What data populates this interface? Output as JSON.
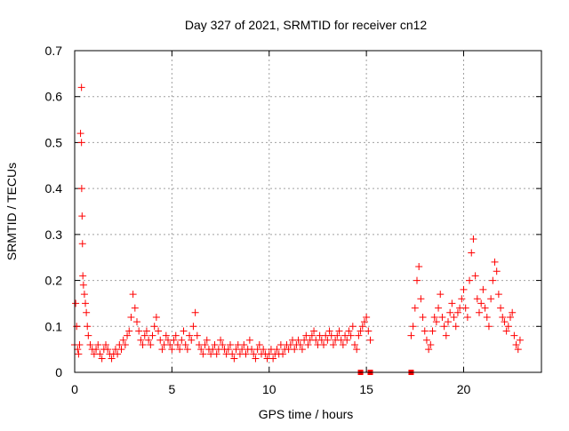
{
  "chart_data": {
    "type": "scatter",
    "title": "Day 327 of 2021, SRMTID for receiver cn12",
    "xlabel": "GPS time / hours",
    "ylabel": "SRMTID / TECUs",
    "xlim": [
      0,
      24
    ],
    "ylim": [
      0,
      0.7
    ],
    "xticks": [
      0,
      5,
      10,
      15,
      20
    ],
    "yticks": [
      0,
      0.1,
      0.2,
      0.3,
      0.4,
      0.5,
      0.6,
      0.7
    ],
    "grid": true,
    "marker": "+",
    "color": "#ff0000",
    "series": [
      {
        "name": "SRMTID",
        "x": [
          0.0,
          0.05,
          0.1,
          0.15,
          0.2,
          0.25,
          0.3,
          0.35,
          0.35,
          0.36,
          0.38,
          0.4,
          0.42,
          0.45,
          0.5,
          0.55,
          0.6,
          0.65,
          0.7,
          0.8,
          0.9,
          1.0,
          1.1,
          1.2,
          1.3,
          1.4,
          1.5,
          1.6,
          1.7,
          1.8,
          1.9,
          2.0,
          2.1,
          2.2,
          2.3,
          2.4,
          2.5,
          2.6,
          2.7,
          2.8,
          2.9,
          3.0,
          3.1,
          3.2,
          3.3,
          3.4,
          3.5,
          3.6,
          3.7,
          3.8,
          3.9,
          4.0,
          4.1,
          4.2,
          4.3,
          4.4,
          4.5,
          4.6,
          4.7,
          4.8,
          4.9,
          5.0,
          5.1,
          5.2,
          5.3,
          5.4,
          5.5,
          5.6,
          5.7,
          5.8,
          5.9,
          6.0,
          6.1,
          6.2,
          6.3,
          6.4,
          6.5,
          6.6,
          6.7,
          6.8,
          6.9,
          7.0,
          7.1,
          7.2,
          7.3,
          7.4,
          7.5,
          7.6,
          7.7,
          7.8,
          7.9,
          8.0,
          8.1,
          8.2,
          8.3,
          8.4,
          8.5,
          8.6,
          8.7,
          8.8,
          8.9,
          9.0,
          9.1,
          9.2,
          9.3,
          9.4,
          9.5,
          9.6,
          9.7,
          9.8,
          9.9,
          10.0,
          10.1,
          10.2,
          10.3,
          10.4,
          10.5,
          10.6,
          10.7,
          10.8,
          10.9,
          11.0,
          11.1,
          11.2,
          11.3,
          11.4,
          11.5,
          11.6,
          11.7,
          11.8,
          11.9,
          12.0,
          12.1,
          12.2,
          12.3,
          12.4,
          12.5,
          12.6,
          12.7,
          12.8,
          12.9,
          13.0,
          13.1,
          13.2,
          13.3,
          13.4,
          13.5,
          13.6,
          13.7,
          13.8,
          13.9,
          14.0,
          14.1,
          14.2,
          14.3,
          14.4,
          14.5,
          14.6,
          14.7,
          14.8,
          14.9,
          15.0,
          15.1,
          15.2,
          17.3,
          17.4,
          17.5,
          17.6,
          17.7,
          17.8,
          17.9,
          18.0,
          18.1,
          18.2,
          18.3,
          18.4,
          18.5,
          18.6,
          18.7,
          18.8,
          18.9,
          19.0,
          19.1,
          19.2,
          19.3,
          19.4,
          19.5,
          19.6,
          19.7,
          19.8,
          19.9,
          20.0,
          20.1,
          20.2,
          20.3,
          20.4,
          20.5,
          20.6,
          20.7,
          20.8,
          20.9,
          21.0,
          21.1,
          21.2,
          21.3,
          21.4,
          21.5,
          21.6,
          21.7,
          21.8,
          21.9,
          22.0,
          22.1,
          22.2,
          22.3,
          22.4,
          22.5,
          22.6,
          22.7,
          22.8,
          22.9
        ],
        "y": [
          0.06,
          0.15,
          0.1,
          0.05,
          0.04,
          0.06,
          0.52,
          0.62,
          0.5,
          0.4,
          0.34,
          0.28,
          0.21,
          0.19,
          0.17,
          0.15,
          0.13,
          0.1,
          0.08,
          0.06,
          0.05,
          0.04,
          0.05,
          0.06,
          0.04,
          0.03,
          0.05,
          0.06,
          0.05,
          0.04,
          0.03,
          0.04,
          0.05,
          0.04,
          0.06,
          0.05,
          0.07,
          0.06,
          0.08,
          0.09,
          0.12,
          0.17,
          0.14,
          0.11,
          0.09,
          0.07,
          0.06,
          0.08,
          0.09,
          0.07,
          0.06,
          0.08,
          0.1,
          0.12,
          0.09,
          0.07,
          0.05,
          0.06,
          0.08,
          0.07,
          0.06,
          0.05,
          0.07,
          0.08,
          0.06,
          0.05,
          0.07,
          0.09,
          0.06,
          0.05,
          0.08,
          0.07,
          0.1,
          0.13,
          0.08,
          0.06,
          0.05,
          0.04,
          0.06,
          0.07,
          0.05,
          0.04,
          0.05,
          0.06,
          0.04,
          0.05,
          0.07,
          0.06,
          0.05,
          0.04,
          0.05,
          0.06,
          0.04,
          0.03,
          0.05,
          0.06,
          0.04,
          0.05,
          0.06,
          0.04,
          0.05,
          0.07,
          0.05,
          0.04,
          0.03,
          0.05,
          0.06,
          0.04,
          0.05,
          0.04,
          0.03,
          0.04,
          0.05,
          0.03,
          0.04,
          0.05,
          0.04,
          0.06,
          0.04,
          0.05,
          0.06,
          0.05,
          0.06,
          0.07,
          0.05,
          0.06,
          0.07,
          0.06,
          0.05,
          0.07,
          0.08,
          0.06,
          0.07,
          0.08,
          0.09,
          0.07,
          0.06,
          0.08,
          0.07,
          0.06,
          0.08,
          0.07,
          0.09,
          0.08,
          0.06,
          0.07,
          0.08,
          0.09,
          0.07,
          0.06,
          0.08,
          0.07,
          0.09,
          0.08,
          0.1,
          0.06,
          0.05,
          0.08,
          0.09,
          0.1,
          0.11,
          0.12,
          0.09,
          0.07,
          0.08,
          0.1,
          0.14,
          0.2,
          0.23,
          0.16,
          0.12,
          0.09,
          0.07,
          0.05,
          0.06,
          0.09,
          0.12,
          0.11,
          0.14,
          0.17,
          0.12,
          0.1,
          0.08,
          0.11,
          0.13,
          0.15,
          0.12,
          0.1,
          0.13,
          0.14,
          0.16,
          0.18,
          0.14,
          0.12,
          0.2,
          0.26,
          0.29,
          0.21,
          0.16,
          0.13,
          0.15,
          0.18,
          0.14,
          0.12,
          0.1,
          0.16,
          0.2,
          0.24,
          0.22,
          0.17,
          0.14,
          0.12,
          0.11,
          0.09,
          0.1,
          0.12,
          0.13,
          0.08,
          0.06,
          0.05,
          0.07
        ]
      }
    ],
    "zero_markers_x": [
      14.7,
      15.2,
      17.3
    ],
    "zero_markers_y": [
      0,
      0,
      0
    ]
  }
}
